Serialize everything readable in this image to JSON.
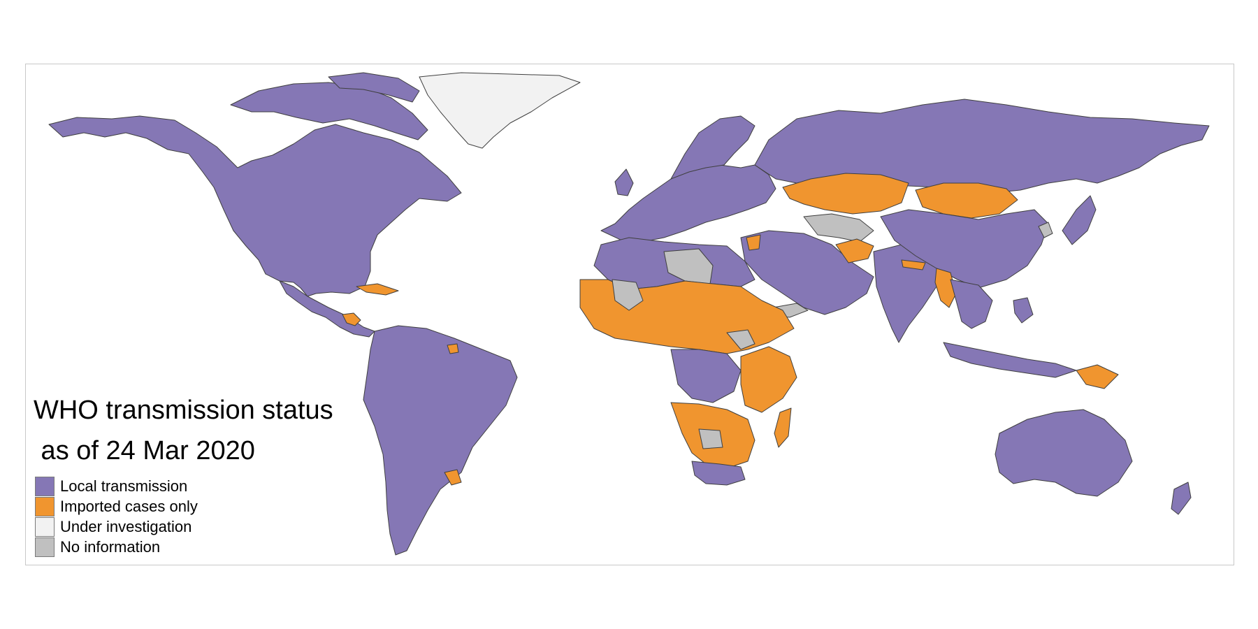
{
  "title": {
    "line1": "WHO transmission status",
    "line2": " as of 24 Mar 2020"
  },
  "colors": {
    "local": "#8577b5",
    "imported": "#f0952f",
    "investigation": "#f2f2f2",
    "no_info": "#c0c0c0"
  },
  "legend": [
    {
      "label": "Local transmission",
      "color": "#8577b5"
    },
    {
      "label": "Imported cases only",
      "color": "#f0952f"
    },
    {
      "label": "Under investigation",
      "color": "#f2f2f2"
    },
    {
      "label": "No information",
      "color": "#c0c0c0"
    }
  ]
}
